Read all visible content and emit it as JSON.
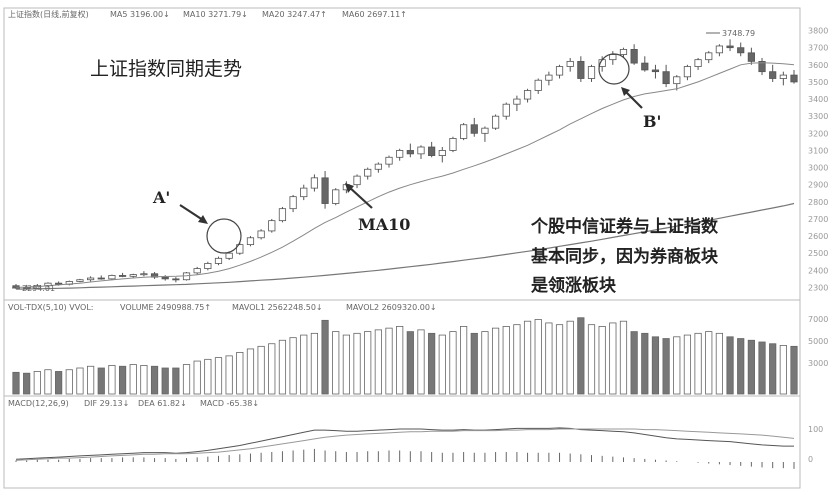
{
  "chart_data": {
    "type": "candlestick",
    "title": "上证指数同期走势",
    "panels": {
      "price": {
        "header": {
          "name": "上证指数(日线,前复权)",
          "ma5": "MA5  3196.00↓",
          "ma10": "MA10  3271.79↓",
          "ma20": "MA20  3247.47↑",
          "ma60": "MA60  2697.11↑"
        },
        "high_label": "3748.79",
        "low_label": "2294.01"
      },
      "volume": {
        "header": {
          "name": "VOL-TDX(5,10) VVOL:",
          "volume": "VOLUME  2490988.75↑",
          "mavol1": "MAVOL1  2562248.50↓",
          "mavol2": "MAVOL2  2609320.00↓"
        }
      },
      "macd": {
        "header": {
          "name": "MACD(12,26,9)",
          "dif": "DIF  29.13↓",
          "dea": "DEA  61.82↓",
          "macd": "MACD  -65.38↓"
        }
      }
    },
    "annotations": {
      "a_label": "A'",
      "b_label": "B'",
      "ma10_label": "MA10",
      "note_line1": "个股中信证券与上证指数",
      "note_line2": "基本同步，因为券商板块",
      "note_line3": "是领涨板块"
    },
    "y_ticks": [
      "3800",
      "3700",
      "3600",
      "3500",
      "3400",
      "3300",
      "3200",
      "3100",
      "3000",
      "2900",
      "2800",
      "2700",
      "2600",
      "2500",
      "2400",
      "2300"
    ],
    "vol_ticks": [
      "7000",
      "5000",
      "3000"
    ],
    "macd_ticks": [
      "100",
      "0"
    ],
    "ylim": [
      2250,
      3850
    ],
    "candles": [
      [
        2310,
        2320,
        2290,
        2300
      ],
      [
        2300,
        2315,
        2285,
        2295
      ],
      [
        2295,
        2320,
        2290,
        2310
      ],
      [
        2310,
        2330,
        2300,
        2325
      ],
      [
        2325,
        2335,
        2310,
        2318
      ],
      [
        2318,
        2340,
        2312,
        2335
      ],
      [
        2335,
        2350,
        2330,
        2345
      ],
      [
        2345,
        2365,
        2335,
        2355
      ],
      [
        2355,
        2370,
        2345,
        2350
      ],
      [
        2350,
        2375,
        2345,
        2370
      ],
      [
        2370,
        2385,
        2360,
        2365
      ],
      [
        2365,
        2380,
        2355,
        2375
      ],
      [
        2375,
        2395,
        2365,
        2380
      ],
      [
        2380,
        2390,
        2350,
        2360
      ],
      [
        2360,
        2372,
        2340,
        2350
      ],
      [
        2350,
        2360,
        2330,
        2345
      ],
      [
        2345,
        2390,
        2340,
        2385
      ],
      [
        2385,
        2420,
        2375,
        2410
      ],
      [
        2410,
        2450,
        2400,
        2440
      ],
      [
        2440,
        2480,
        2430,
        2470
      ],
      [
        2470,
        2510,
        2460,
        2500
      ],
      [
        2500,
        2560,
        2490,
        2550
      ],
      [
        2550,
        2600,
        2540,
        2590
      ],
      [
        2590,
        2640,
        2580,
        2630
      ],
      [
        2630,
        2700,
        2620,
        2690
      ],
      [
        2690,
        2770,
        2680,
        2760
      ],
      [
        2760,
        2840,
        2740,
        2830
      ],
      [
        2830,
        2900,
        2810,
        2880
      ],
      [
        2880,
        2960,
        2860,
        2940
      ],
      [
        2940,
        2980,
        2760,
        2790
      ],
      [
        2790,
        2880,
        2780,
        2870
      ],
      [
        2870,
        2920,
        2850,
        2900
      ],
      [
        2900,
        2960,
        2880,
        2950
      ],
      [
        2950,
        3000,
        2930,
        2990
      ],
      [
        2990,
        3030,
        2970,
        3020
      ],
      [
        3020,
        3070,
        3000,
        3060
      ],
      [
        3060,
        3110,
        3040,
        3100
      ],
      [
        3100,
        3140,
        3060,
        3080
      ],
      [
        3080,
        3130,
        3050,
        3120
      ],
      [
        3120,
        3150,
        3060,
        3070
      ],
      [
        3070,
        3120,
        3030,
        3100
      ],
      [
        3100,
        3180,
        3090,
        3170
      ],
      [
        3170,
        3260,
        3160,
        3250
      ],
      [
        3250,
        3290,
        3180,
        3200
      ],
      [
        3200,
        3240,
        3150,
        3230
      ],
      [
        3230,
        3310,
        3220,
        3300
      ],
      [
        3300,
        3380,
        3280,
        3370
      ],
      [
        3370,
        3420,
        3330,
        3400
      ],
      [
        3400,
        3460,
        3380,
        3450
      ],
      [
        3450,
        3520,
        3430,
        3510
      ],
      [
        3510,
        3560,
        3480,
        3540
      ],
      [
        3540,
        3600,
        3520,
        3590
      ],
      [
        3590,
        3640,
        3560,
        3620
      ],
      [
        3620,
        3650,
        3500,
        3520
      ],
      [
        3520,
        3600,
        3500,
        3590
      ],
      [
        3590,
        3650,
        3560,
        3630
      ],
      [
        3630,
        3680,
        3600,
        3660
      ],
      [
        3660,
        3700,
        3640,
        3690
      ],
      [
        3690,
        3720,
        3600,
        3610
      ],
      [
        3610,
        3650,
        3560,
        3570
      ],
      [
        3570,
        3600,
        3520,
        3560
      ],
      [
        3560,
        3600,
        3470,
        3490
      ],
      [
        3490,
        3540,
        3450,
        3530
      ],
      [
        3530,
        3600,
        3510,
        3590
      ],
      [
        3590,
        3640,
        3570,
        3630
      ],
      [
        3630,
        3680,
        3610,
        3670
      ],
      [
        3670,
        3720,
        3650,
        3710
      ],
      [
        3710,
        3748.79,
        3680,
        3700
      ],
      [
        3700,
        3730,
        3650,
        3670
      ],
      [
        3670,
        3700,
        3600,
        3620
      ],
      [
        3620,
        3640,
        3540,
        3560
      ],
      [
        3560,
        3600,
        3500,
        3520
      ],
      [
        3520,
        3560,
        3480,
        3540
      ],
      [
        3540,
        3570,
        3490,
        3500
      ]
    ],
    "ma10": [
      2300,
      2302,
      2305,
      2310,
      2315,
      2320,
      2325,
      2332,
      2338,
      2344,
      2350,
      2355,
      2360,
      2362,
      2364,
      2365,
      2368,
      2374,
      2383,
      2395,
      2410,
      2430,
      2452,
      2477,
      2505,
      2535,
      2570,
      2607,
      2645,
      2680,
      2708,
      2740,
      2770,
      2800,
      2830,
      2857,
      2880,
      2900,
      2918,
      2935,
      2950,
      2968,
      2990,
      3010,
      3032,
      3055,
      3080,
      3105,
      3130,
      3160,
      3190,
      3220,
      3255,
      3285,
      3315,
      3345,
      3370,
      3395,
      3415,
      3430,
      3440,
      3450,
      3460,
      3480,
      3500,
      3525,
      3550,
      3575,
      3600,
      3610,
      3612,
      3610,
      3606,
      3600
    ],
    "ma60": [
      2290,
      2291,
      2292,
      2293,
      2295,
      2296,
      2298,
      2300,
      2302,
      2304,
      2306,
      2308,
      2310,
      2312,
      2314,
      2316,
      2318,
      2321,
      2324,
      2327,
      2330,
      2334,
      2338,
      2342,
      2346,
      2350,
      2355,
      2360,
      2365,
      2370,
      2376,
      2382,
      2388,
      2394,
      2400,
      2407,
      2414,
      2421,
      2428,
      2435,
      2443,
      2451,
      2459,
      2467,
      2475,
      2484,
      2493,
      2502,
      2511,
      2520,
      2530,
      2540,
      2550,
      2560,
      2570,
      2581,
      2592,
      2603,
      2614,
      2625,
      2636,
      2647,
      2658,
      2669,
      2680,
      2692,
      2704,
      2716,
      2728,
      2740,
      2752,
      2764,
      2776,
      2790
    ],
    "volume": [
      25,
      24,
      26,
      28,
      26,
      28,
      30,
      32,
      30,
      33,
      32,
      34,
      33,
      32,
      30,
      30,
      34,
      38,
      40,
      42,
      44,
      48,
      52,
      55,
      58,
      62,
      65,
      68,
      70,
      85,
      72,
      68,
      70,
      72,
      74,
      76,
      78,
      72,
      74,
      70,
      68,
      72,
      78,
      70,
      72,
      76,
      78,
      80,
      84,
      86,
      82,
      80,
      84,
      88,
      80,
      78,
      82,
      84,
      72,
      70,
      66,
      64,
      66,
      68,
      70,
      72,
      70,
      66,
      64,
      62,
      60,
      58,
      56,
      55
    ],
    "macd_bars": [
      2,
      2,
      3,
      3,
      3,
      4,
      4,
      5,
      5,
      5,
      6,
      6,
      6,
      5,
      5,
      4,
      5,
      6,
      7,
      8,
      9,
      10,
      11,
      12,
      13,
      14,
      15,
      16,
      17,
      15,
      14,
      13,
      13,
      14,
      14,
      15,
      15,
      14,
      14,
      13,
      12,
      12,
      13,
      12,
      12,
      13,
      13,
      13,
      12,
      12,
      12,
      12,
      11,
      10,
      9,
      8,
      7,
      6,
      5,
      4,
      3,
      2,
      1,
      0,
      -1,
      -2,
      -3,
      -4,
      -5,
      -6,
      -7,
      -8,
      -8,
      -9
    ],
    "dif": [
      5,
      6,
      7,
      8,
      9,
      10,
      11,
      12,
      13,
      14,
      15,
      16,
      17,
      17,
      17,
      16,
      17,
      19,
      21,
      24,
      27,
      30,
      34,
      38,
      42,
      46,
      50,
      54,
      58,
      58,
      57,
      56,
      56,
      57,
      58,
      59,
      60,
      60,
      60,
      59,
      58,
      58,
      59,
      58,
      58,
      59,
      60,
      61,
      61,
      61,
      61,
      62,
      61,
      59,
      58,
      57,
      56,
      55,
      53,
      50,
      47,
      44,
      42,
      41,
      40,
      39,
      38,
      37,
      35,
      33,
      31,
      30,
      29,
      29
    ],
    "dea": [
      3,
      4,
      5,
      6,
      7,
      7,
      8,
      9,
      10,
      11,
      12,
      13,
      14,
      14,
      15,
      15,
      15,
      16,
      17,
      18,
      20,
      22,
      24,
      27,
      30,
      33,
      36,
      39,
      42,
      45,
      47,
      49,
      50,
      51,
      52,
      53,
      54,
      55,
      55,
      56,
      56,
      56,
      57,
      57,
      57,
      57,
      58,
      58,
      59,
      59,
      59,
      60,
      60,
      60,
      60,
      60,
      60,
      60,
      60,
      59,
      59,
      58,
      57,
      56,
      55,
      54,
      53,
      52,
      51,
      50,
      49,
      47,
      45,
      43
    ]
  }
}
